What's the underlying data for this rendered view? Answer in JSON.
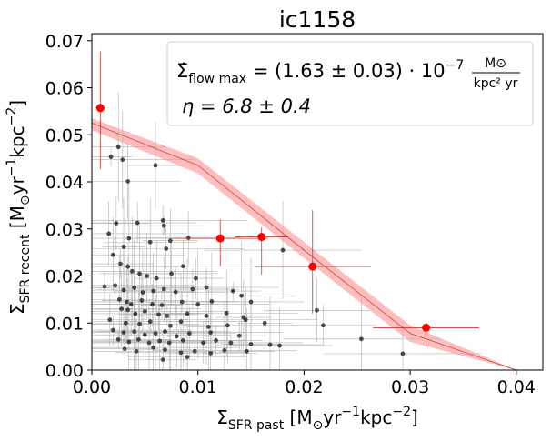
{
  "chart_data": {
    "type": "scatter",
    "title": "ic1158",
    "xlabel": {
      "main": "Σ",
      "sub": "SFR past",
      "units_prefix": "  [M",
      "sun": "⊙",
      "yr": "yr",
      "exp1": "−1",
      "kpc": "kpc",
      "exp2": "−2",
      "close": "]"
    },
    "ylabel": {
      "main": "Σ",
      "sub": "SFR recent",
      "units_prefix": "  [M",
      "sun": "⊙",
      "yr": "yr",
      "exp1": "−1",
      "kpc": "kpc",
      "exp2": "−2",
      "close": "]"
    },
    "xlim": [
      0.0,
      0.0425
    ],
    "ylim": [
      0.0,
      0.0715
    ],
    "xticks": [
      0.0,
      0.01,
      0.02,
      0.03,
      0.04
    ],
    "xtick_labels": [
      "0.00",
      "0.01",
      "0.02",
      "0.03",
      "0.04"
    ],
    "yticks": [
      0.0,
      0.01,
      0.02,
      0.03,
      0.04,
      0.05,
      0.06,
      0.07
    ],
    "ytick_labels": [
      "0.00",
      "0.01",
      "0.02",
      "0.03",
      "0.04",
      "0.05",
      "0.06",
      "0.07"
    ],
    "annotation": {
      "line1_prefix": "Σ̇",
      "line1_sub": "flow max",
      "line1_value": " = (1.63 ± 0.03) · 10",
      "line1_exp": "−7",
      "frac_num": "M⊙",
      "frac_den": "kpc² yr",
      "line2": "η = 6.8 ± 0.4"
    },
    "colors": {
      "fit_line": "#c0392b",
      "fit_band": "#ff9999",
      "binned": "#ff0000",
      "points": "#222222",
      "errbar": "#b0b0b0"
    },
    "fit_line": {
      "x": [
        0.0,
        0.01,
        0.02,
        0.03,
        0.04
      ],
      "y": [
        0.0525,
        0.0435,
        0.0255,
        0.0078,
        0.0
      ]
    },
    "fit_band_upper": [
      0.0535,
      0.045,
      0.0272,
      0.0095,
      0.0
    ],
    "fit_band_lower": [
      0.051,
      0.0418,
      0.0238,
      0.006,
      0.0
    ],
    "binned_points": [
      {
        "x": 0.0008,
        "y": 0.0557,
        "xerr": 0.0005,
        "yerr_lo": 0.013,
        "yerr_hi": 0.012
      },
      {
        "x": 0.0121,
        "y": 0.028,
        "xerr": 0.0045,
        "yerr_lo": 0.006,
        "yerr_hi": 0.004
      },
      {
        "x": 0.016,
        "y": 0.0283,
        "xerr": 0.0025,
        "yerr_lo": 0.008,
        "yerr_hi": 0.002
      },
      {
        "x": 0.0208,
        "y": 0.022,
        "xerr": 0.0055,
        "yerr_lo": 0.01,
        "yerr_hi": 0.012
      },
      {
        "x": 0.0315,
        "y": 0.009,
        "xerr": 0.005,
        "yerr_lo": 0.004,
        "yerr_hi": 0.001
      }
    ],
    "points": [
      {
        "x": 0.0018,
        "y": 0.0453
      },
      {
        "x": 0.0025,
        "y": 0.0474
      },
      {
        "x": 0.0029,
        "y": 0.0447
      },
      {
        "x": 0.006,
        "y": 0.0435
      },
      {
        "x": 0.0034,
        "y": 0.0401
      },
      {
        "x": 0.0016,
        "y": 0.029
      },
      {
        "x": 0.0023,
        "y": 0.0312
      },
      {
        "x": 0.0043,
        "y": 0.0313
      },
      {
        "x": 0.0067,
        "y": 0.0318
      },
      {
        "x": 0.0068,
        "y": 0.0307
      },
      {
        "x": 0.0035,
        "y": 0.028
      },
      {
        "x": 0.003,
        "y": 0.0262
      },
      {
        "x": 0.0055,
        "y": 0.0272
      },
      {
        "x": 0.002,
        "y": 0.0245
      },
      {
        "x": 0.0074,
        "y": 0.0275
      },
      {
        "x": 0.0091,
        "y": 0.0281
      },
      {
        "x": 0.007,
        "y": 0.0258
      },
      {
        "x": 0.0027,
        "y": 0.0226
      },
      {
        "x": 0.0034,
        "y": 0.022
      },
      {
        "x": 0.0038,
        "y": 0.021
      },
      {
        "x": 0.0045,
        "y": 0.0205
      },
      {
        "x": 0.0052,
        "y": 0.02
      },
      {
        "x": 0.0061,
        "y": 0.0195
      },
      {
        "x": 0.0075,
        "y": 0.0205
      },
      {
        "x": 0.0086,
        "y": 0.0221
      },
      {
        "x": 0.0098,
        "y": 0.0195
      },
      {
        "x": 0.0012,
        "y": 0.0178
      },
      {
        "x": 0.0022,
        "y": 0.018
      },
      {
        "x": 0.003,
        "y": 0.017
      },
      {
        "x": 0.004,
        "y": 0.0175
      },
      {
        "x": 0.0048,
        "y": 0.0165
      },
      {
        "x": 0.0058,
        "y": 0.0168
      },
      {
        "x": 0.0068,
        "y": 0.0172
      },
      {
        "x": 0.0079,
        "y": 0.0166
      },
      {
        "x": 0.0095,
        "y": 0.0172
      },
      {
        "x": 0.0108,
        "y": 0.0176
      },
      {
        "x": 0.0133,
        "y": 0.0168
      },
      {
        "x": 0.0141,
        "y": 0.0158
      },
      {
        "x": 0.018,
        "y": 0.0255
      },
      {
        "x": 0.0026,
        "y": 0.015
      },
      {
        "x": 0.0033,
        "y": 0.0145
      },
      {
        "x": 0.0037,
        "y": 0.014
      },
      {
        "x": 0.0047,
        "y": 0.0148
      },
      {
        "x": 0.0057,
        "y": 0.014
      },
      {
        "x": 0.0066,
        "y": 0.0138
      },
      {
        "x": 0.0085,
        "y": 0.0145
      },
      {
        "x": 0.01,
        "y": 0.014
      },
      {
        "x": 0.0113,
        "y": 0.0146
      },
      {
        "x": 0.015,
        "y": 0.0145
      },
      {
        "x": 0.0028,
        "y": 0.013
      },
      {
        "x": 0.0034,
        "y": 0.0128
      },
      {
        "x": 0.0041,
        "y": 0.012
      },
      {
        "x": 0.005,
        "y": 0.0125
      },
      {
        "x": 0.0063,
        "y": 0.0118
      },
      {
        "x": 0.0071,
        "y": 0.0115
      },
      {
        "x": 0.009,
        "y": 0.012
      },
      {
        "x": 0.0108,
        "y": 0.0115
      },
      {
        "x": 0.0127,
        "y": 0.0121
      },
      {
        "x": 0.0143,
        "y": 0.0112
      },
      {
        "x": 0.0212,
        "y": 0.0127
      },
      {
        "x": 0.0017,
        "y": 0.0107
      },
      {
        "x": 0.0032,
        "y": 0.01
      },
      {
        "x": 0.0045,
        "y": 0.0098
      },
      {
        "x": 0.0055,
        "y": 0.0103
      },
      {
        "x": 0.0074,
        "y": 0.0094
      },
      {
        "x": 0.0084,
        "y": 0.0103
      },
      {
        "x": 0.011,
        "y": 0.0092
      },
      {
        "x": 0.0128,
        "y": 0.0095
      },
      {
        "x": 0.0145,
        "y": 0.0107
      },
      {
        "x": 0.0163,
        "y": 0.01
      },
      {
        "x": 0.0218,
        "y": 0.0095
      },
      {
        "x": 0.002,
        "y": 0.0085
      },
      {
        "x": 0.003,
        "y": 0.008
      },
      {
        "x": 0.004,
        "y": 0.0082
      },
      {
        "x": 0.005,
        "y": 0.0075
      },
      {
        "x": 0.006,
        "y": 0.0078
      },
      {
        "x": 0.0069,
        "y": 0.0082
      },
      {
        "x": 0.008,
        "y": 0.0072
      },
      {
        "x": 0.0092,
        "y": 0.0078
      },
      {
        "x": 0.0112,
        "y": 0.008
      },
      {
        "x": 0.0139,
        "y": 0.0073
      },
      {
        "x": 0.0025,
        "y": 0.0065
      },
      {
        "x": 0.0035,
        "y": 0.006
      },
      {
        "x": 0.0044,
        "y": 0.0065
      },
      {
        "x": 0.0054,
        "y": 0.0058
      },
      {
        "x": 0.0064,
        "y": 0.0062
      },
      {
        "x": 0.0073,
        "y": 0.0058
      },
      {
        "x": 0.0086,
        "y": 0.0063
      },
      {
        "x": 0.0105,
        "y": 0.0058
      },
      {
        "x": 0.0117,
        "y": 0.0063
      },
      {
        "x": 0.0131,
        "y": 0.0058
      },
      {
        "x": 0.015,
        "y": 0.0055
      },
      {
        "x": 0.0168,
        "y": 0.0054
      },
      {
        "x": 0.0254,
        "y": 0.0066
      },
      {
        "x": 0.0031,
        "y": 0.0045
      },
      {
        "x": 0.0042,
        "y": 0.004
      },
      {
        "x": 0.0058,
        "y": 0.0048
      },
      {
        "x": 0.0069,
        "y": 0.0043
      },
      {
        "x": 0.0084,
        "y": 0.0037
      },
      {
        "x": 0.0097,
        "y": 0.004
      },
      {
        "x": 0.0112,
        "y": 0.0036
      },
      {
        "x": 0.0125,
        "y": 0.0042
      },
      {
        "x": 0.0146,
        "y": 0.004
      },
      {
        "x": 0.0177,
        "y": 0.0052
      },
      {
        "x": 0.0293,
        "y": 0.0035
      },
      {
        "x": 0.0067,
        "y": 0.0022
      },
      {
        "x": 0.009,
        "y": 0.0028
      }
    ]
  }
}
